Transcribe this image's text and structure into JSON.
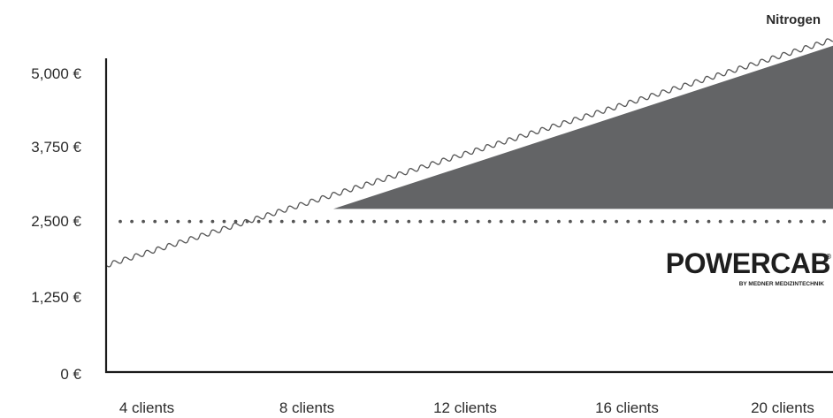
{
  "chart_data": {
    "type": "line",
    "title": "",
    "xlabel": "",
    "ylabel": "",
    "categories": [
      "4 clients",
      "8 clients",
      "12 clients",
      "16 clients",
      "20 clients"
    ],
    "x": [
      4,
      8,
      12,
      16,
      20
    ],
    "xlim": [
      4,
      20
    ],
    "ylim": [
      0,
      5000
    ],
    "y_ticks": [
      0,
      1250,
      2500,
      3750,
      5000
    ],
    "y_tick_labels": [
      "0 €",
      "1,250 €",
      "2,500 €",
      "3,750 €",
      "5,000 €"
    ],
    "grid": false,
    "series": [
      {
        "name": "Nitrogen",
        "style": "wavy-line",
        "x": [
          4,
          20
        ],
        "y": [
          1700,
          5300
        ]
      },
      {
        "name": "",
        "style": "dotted-line",
        "brand": "POWERCAB",
        "x": [
          4,
          20
        ],
        "y": [
          2400,
          2400
        ]
      }
    ],
    "savings_area": {
      "x": [
        9,
        20
      ],
      "y_bottom": [
        2600,
        2600
      ],
      "y_top": [
        2600,
        5200
      ],
      "color": "#636466"
    },
    "logo": {
      "wordmark": "POWERCAB",
      "subtitle": "BY MEDNER MEDIZINTECHNIK",
      "registered": "®"
    },
    "colors": {
      "axis": "#1a1a1a",
      "text": "#2b2b2b",
      "wave": "#555555",
      "dots": "#555555",
      "area": "#636466"
    }
  }
}
